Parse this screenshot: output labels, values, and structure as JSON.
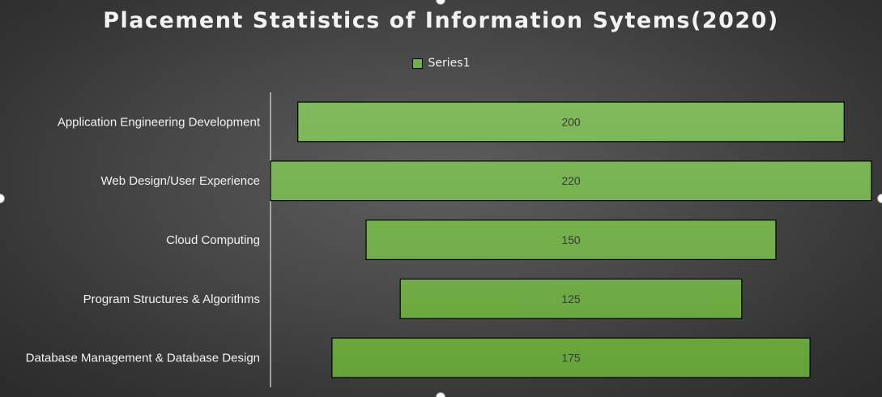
{
  "chart_data": {
    "type": "bar",
    "subtype": "funnel",
    "title": "Placement Statistics of Information Sytems(2020)",
    "categories": [
      "Application Engineering Development",
      "Web Design/User Experience",
      "Cloud Computing",
      "Program Structures & Algorithms",
      "Database Management & Database Design"
    ],
    "series": [
      {
        "name": "Series1",
        "values": [
          200,
          220,
          150,
          125,
          175
        ],
        "color": "#70b04a"
      }
    ],
    "data_labels": [
      "200",
      "220",
      "150",
      "125",
      "175"
    ],
    "legend_position": "top",
    "orientation": "horizontal",
    "alignment": "centered"
  },
  "colors": {
    "bar_fill_top": "#82bb5e",
    "bar_fill_bottom": "#64a337",
    "bar_stroke": "#000000",
    "label_text": "#f2f2f2",
    "data_label_text": "#3a3a3a",
    "axis_line": "#bfbfbf"
  }
}
